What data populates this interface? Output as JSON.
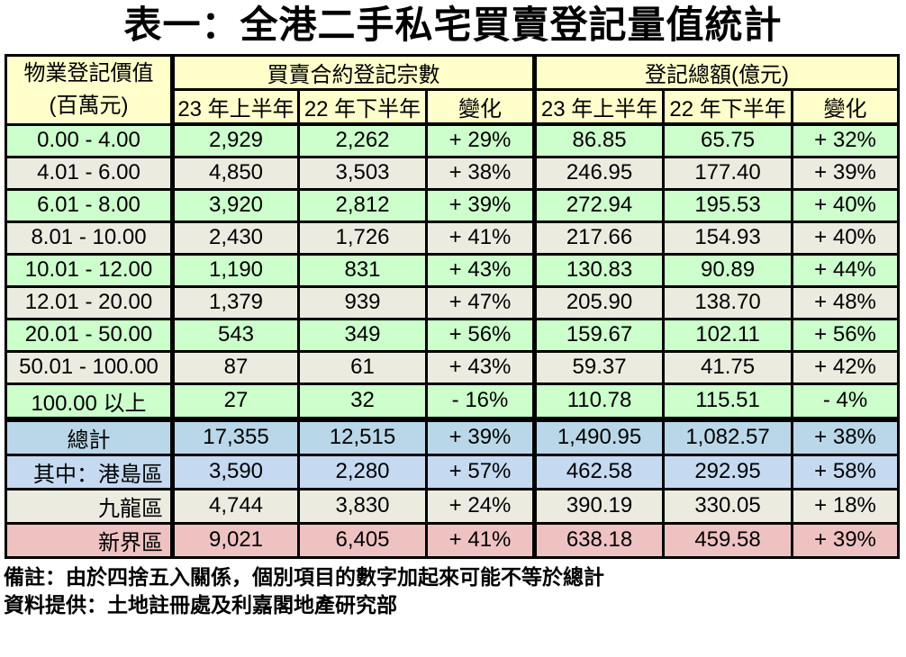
{
  "title": "表一：全港二手私宅買賣登記量值統計",
  "table": {
    "col1_header_line1": "物業登記價值",
    "col1_header_line2": "(百萬元)",
    "group1_header": "買賣合約登記宗數",
    "group2_header": "登記總額(億元)",
    "sub_headers": [
      "23 年上半年",
      "22 年下半年",
      "變化",
      "23 年上半年",
      "22 年下半年",
      "變化"
    ],
    "rows": [
      {
        "label": "0.00 - 4.00",
        "cells": [
          "2,929",
          "2,262",
          "+ 29%",
          "86.85",
          "65.75",
          "+ 32%"
        ],
        "style": "green",
        "label_align": "center"
      },
      {
        "label": "4.01 - 6.00",
        "cells": [
          "4,850",
          "3,503",
          "+ 38%",
          "246.95",
          "177.40",
          "+ 39%"
        ],
        "style": "beige",
        "label_align": "center"
      },
      {
        "label": "6.01 - 8.00",
        "cells": [
          "3,920",
          "2,812",
          "+ 39%",
          "272.94",
          "195.53",
          "+ 40%"
        ],
        "style": "green",
        "label_align": "center"
      },
      {
        "label": "8.01 - 10.00",
        "cells": [
          "2,430",
          "1,726",
          "+ 41%",
          "217.66",
          "154.93",
          "+ 40%"
        ],
        "style": "beige",
        "label_align": "center"
      },
      {
        "label": "10.01 - 12.00",
        "cells": [
          "1,190",
          "831",
          "+ 43%",
          "130.83",
          "90.89",
          "+ 44%"
        ],
        "style": "green",
        "label_align": "center"
      },
      {
        "label": "12.01 - 20.00",
        "cells": [
          "1,379",
          "939",
          "+ 47%",
          "205.90",
          "138.70",
          "+ 48%"
        ],
        "style": "beige",
        "label_align": "center"
      },
      {
        "label": "20.01 - 50.00",
        "cells": [
          "543",
          "349",
          "+ 56%",
          "159.67",
          "102.11",
          "+ 56%"
        ],
        "style": "green",
        "label_align": "center"
      },
      {
        "label": "50.01 - 100.00",
        "cells": [
          "87",
          "61",
          "+ 43%",
          "59.37",
          "41.75",
          "+ 42%"
        ],
        "style": "beige",
        "label_align": "center"
      },
      {
        "label": "100.00 以上",
        "cells": [
          "27",
          "32",
          "- 16%",
          "110.78",
          "115.51",
          "- 4%"
        ],
        "style": "green",
        "label_align": "center"
      },
      {
        "label": "總計",
        "cells": [
          "17,355",
          "12,515",
          "+ 39%",
          "1,490.95",
          "1,082.57",
          "+ 38%"
        ],
        "style": "total",
        "label_align": "center"
      },
      {
        "label": "其中：港島區",
        "cells": [
          "3,590",
          "2,280",
          "+ 57%",
          "462.58",
          "292.95",
          "+ 58%"
        ],
        "style": "island",
        "label_align": "right"
      },
      {
        "label": "九龍區",
        "cells": [
          "4,744",
          "3,830",
          "+ 24%",
          "390.19",
          "330.05",
          "+ 18%"
        ],
        "style": "kowloon",
        "label_align": "right"
      },
      {
        "label": "新界區",
        "cells": [
          "9,021",
          "6,405",
          "+ 41%",
          "638.18",
          "459.58",
          "+ 39%"
        ],
        "style": "nt",
        "label_align": "right"
      }
    ]
  },
  "footnotes": {
    "note": "備註：由於四捨五入關係，個別項目的數字加起來可能不等於總計",
    "source": "資料提供：土地註冊處及利嘉閣地產研究部"
  },
  "colors": {
    "header-yellow": "#FFFFCC",
    "row-green": "#CCFFCC",
    "row-beige": "#EBEBE0",
    "row-total": "#B9D7E8",
    "row-island": "#C5D9F1",
    "row-kowloon": "#EBEBE0",
    "row-nt": "#EFC2C2",
    "border-black": "#000000",
    "text-black": "#000000"
  }
}
